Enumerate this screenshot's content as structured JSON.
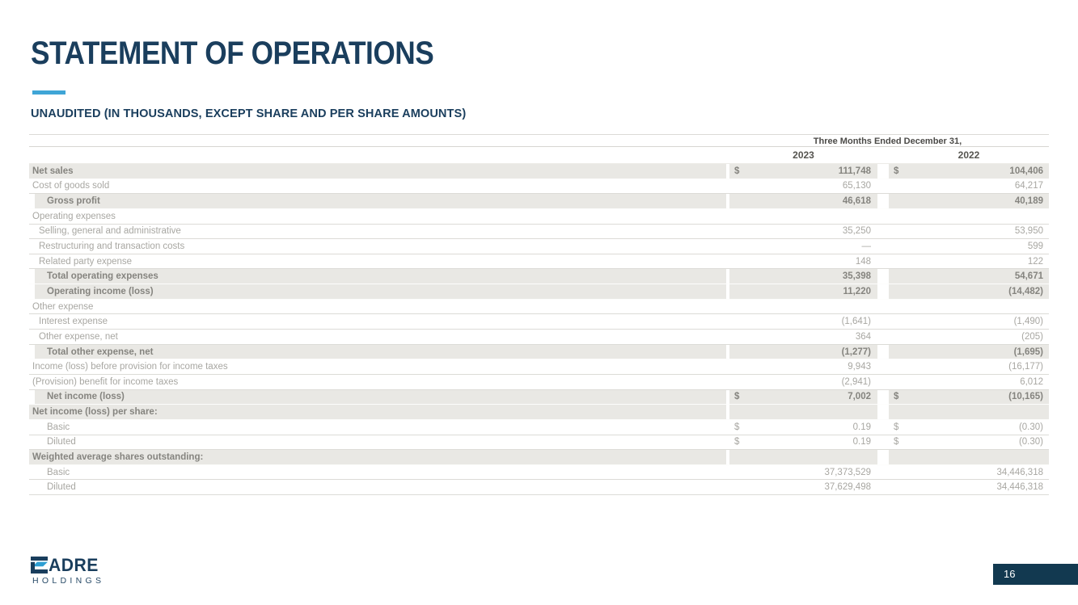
{
  "slide": {
    "title": "STATEMENT OF OPERATIONS",
    "subtitle": "UNAUDITED (IN THOUSANDS, EXCEPT SHARE AND PER SHARE AMOUNTS)",
    "page_number": "16"
  },
  "logo": {
    "icon": "cadre-c-mark",
    "wordmark": "ADRE",
    "subtext": "HOLDINGS"
  },
  "colors": {
    "navy": "#1a3e5d",
    "accent_blue": "#3fa5d6",
    "logo_light_blue": "#2f9fd3",
    "row_shade": "#e9e8e4",
    "regular_text": "#a8a7a2",
    "bold_text": "#85847f",
    "page_badge_bg": "#123950"
  },
  "table": {
    "period_header": "Three Months Ended December 31,",
    "years": [
      "2023",
      "2022"
    ],
    "currency_symbol": "$",
    "rows": [
      {
        "label": "Net sales",
        "indent": 0,
        "bold": true,
        "shade": "full",
        "dollar": true,
        "v2023": "111,748",
        "v2022": "104,406"
      },
      {
        "label": "Cost of goods sold",
        "indent": 0,
        "bold": false,
        "shade": "none",
        "dollar": false,
        "v2023": "65,130",
        "v2022": "64,217"
      },
      {
        "label": "Gross profit",
        "indent": 2,
        "bold": true,
        "shade": "inset",
        "dollar": false,
        "v2023": "46,618",
        "v2022": "40,189"
      },
      {
        "label": "Operating expenses",
        "indent": 0,
        "bold": false,
        "shade": "none",
        "dollar": false,
        "v2023": "",
        "v2022": ""
      },
      {
        "label": "Selling, general and administrative",
        "indent": 1,
        "bold": false,
        "shade": "none",
        "dollar": false,
        "v2023": "35,250",
        "v2022": "53,950"
      },
      {
        "label": "Restructuring and transaction costs",
        "indent": 1,
        "bold": false,
        "shade": "none",
        "dollar": false,
        "v2023": "—",
        "v2022": "599"
      },
      {
        "label": "Related party expense",
        "indent": 1,
        "bold": false,
        "shade": "none",
        "dollar": false,
        "v2023": "148",
        "v2022": "122"
      },
      {
        "label": "Total operating expenses",
        "indent": 2,
        "bold": true,
        "shade": "inset",
        "dollar": false,
        "v2023": "35,398",
        "v2022": "54,671"
      },
      {
        "label": "Operating income (loss)",
        "indent": 2,
        "bold": true,
        "shade": "inset",
        "dollar": false,
        "v2023": "11,220",
        "v2022": "(14,482)"
      },
      {
        "label": "Other expense",
        "indent": 0,
        "bold": false,
        "shade": "none",
        "dollar": false,
        "v2023": "",
        "v2022": ""
      },
      {
        "label": "Interest expense",
        "indent": 1,
        "bold": false,
        "shade": "none",
        "dollar": false,
        "v2023": "(1,641)",
        "v2022": "(1,490)"
      },
      {
        "label": "Other expense, net",
        "indent": 1,
        "bold": false,
        "shade": "none",
        "dollar": false,
        "v2023": "364",
        "v2022": "(205)"
      },
      {
        "label": "Total other expense, net",
        "indent": 2,
        "bold": true,
        "shade": "inset",
        "dollar": false,
        "v2023": "(1,277)",
        "v2022": "(1,695)"
      },
      {
        "label": "Income (loss) before provision for income taxes",
        "indent": 0,
        "bold": false,
        "shade": "none",
        "dollar": false,
        "v2023": "9,943",
        "v2022": "(16,177)"
      },
      {
        "label": "(Provision) benefit for income taxes",
        "indent": 0,
        "bold": false,
        "shade": "none",
        "dollar": false,
        "v2023": "(2,941)",
        "v2022": "6,012"
      },
      {
        "label": "Net income (loss)",
        "indent": 2,
        "bold": true,
        "shade": "inset",
        "dollar": true,
        "v2023": "7,002",
        "v2022": "(10,165)"
      },
      {
        "label": "Net income (loss) per share:",
        "indent": 0,
        "bold": true,
        "shade": "full",
        "dollar": false,
        "v2023": "",
        "v2022": ""
      },
      {
        "label": "Basic",
        "indent": 2,
        "bold": false,
        "shade": "none",
        "dollar": true,
        "v2023": "0.19",
        "v2022": "(0.30)"
      },
      {
        "label": "Diluted",
        "indent": 2,
        "bold": false,
        "shade": "none",
        "dollar": true,
        "v2023": "0.19",
        "v2022": "(0.30)"
      },
      {
        "label": "Weighted average shares outstanding:",
        "indent": 0,
        "bold": true,
        "shade": "full",
        "dollar": false,
        "v2023": "",
        "v2022": ""
      },
      {
        "label": "Basic",
        "indent": 2,
        "bold": false,
        "shade": "none",
        "dollar": false,
        "v2023": "37,373,529",
        "v2022": "34,446,318"
      },
      {
        "label": "Diluted",
        "indent": 2,
        "bold": false,
        "shade": "none",
        "dollar": false,
        "v2023": "37,629,498",
        "v2022": "34,446,318"
      }
    ]
  }
}
